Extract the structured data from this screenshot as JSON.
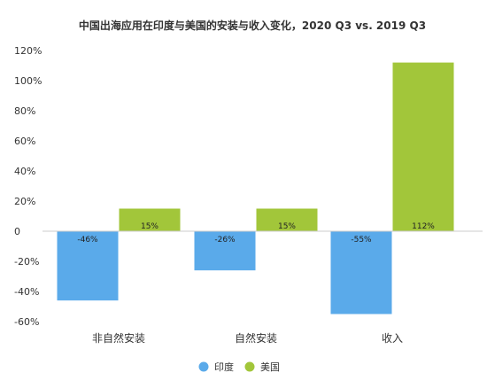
{
  "chart_data": {
    "type": "bar",
    "title": "中国出海应用在印度与美国的安装与收入变化，2020 Q3 vs. 2019 Q3",
    "categories": [
      "非自然安装",
      "自然安装",
      "收入"
    ],
    "series": [
      {
        "name": "印度",
        "color": "#5aaaea",
        "values": [
          -46,
          -26,
          -55
        ],
        "labels": [
          "-46%",
          "-26%",
          "-55%"
        ]
      },
      {
        "name": "美国",
        "color": "#a2c63a",
        "values": [
          15,
          15,
          112
        ],
        "labels": [
          "15%",
          "15%",
          "112%"
        ]
      }
    ],
    "ylim": [
      -60,
      120
    ],
    "yticks": [
      {
        "value": 120,
        "label": "120%"
      },
      {
        "value": 100,
        "label": "100%"
      },
      {
        "value": 80,
        "label": "80%"
      },
      {
        "value": 60,
        "label": "60%"
      },
      {
        "value": 40,
        "label": "40%"
      },
      {
        "value": 20,
        "label": "20%"
      },
      {
        "value": 0,
        "label": "0"
      },
      {
        "value": -20,
        "label": "-20%"
      },
      {
        "value": -40,
        "label": "-40%"
      },
      {
        "value": -60,
        "label": "-60%"
      }
    ],
    "grid": false,
    "legend_position": "bottom-center"
  }
}
